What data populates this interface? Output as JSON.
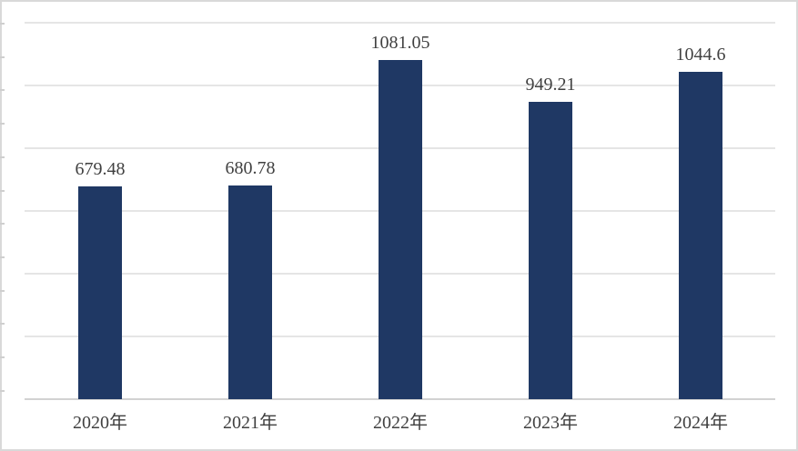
{
  "chart_data": {
    "type": "bar",
    "title": "",
    "xlabel": "",
    "ylabel": "",
    "categories": [
      "2020年",
      "2021年",
      "2022年",
      "2023年",
      "2024年"
    ],
    "values": [
      679.48,
      680.78,
      1081.05,
      949.21,
      1044.6
    ],
    "data_labels": [
      "679.48",
      "680.78",
      "1081.05",
      "949.21",
      "1044.6"
    ],
    "series_name": "",
    "ylim": [
      0,
      1200
    ],
    "gridline_interval": 200,
    "grid": true,
    "legend": false,
    "legend_position": "none",
    "y_tick_labels_visible": false,
    "colors": {
      "bar": "#1F3864",
      "gridline": "#E5E5E5",
      "axis_line": "#D2D2D2",
      "frame": "#D9D9D9",
      "tick": "#CFCFCF",
      "text": "#404040"
    }
  }
}
